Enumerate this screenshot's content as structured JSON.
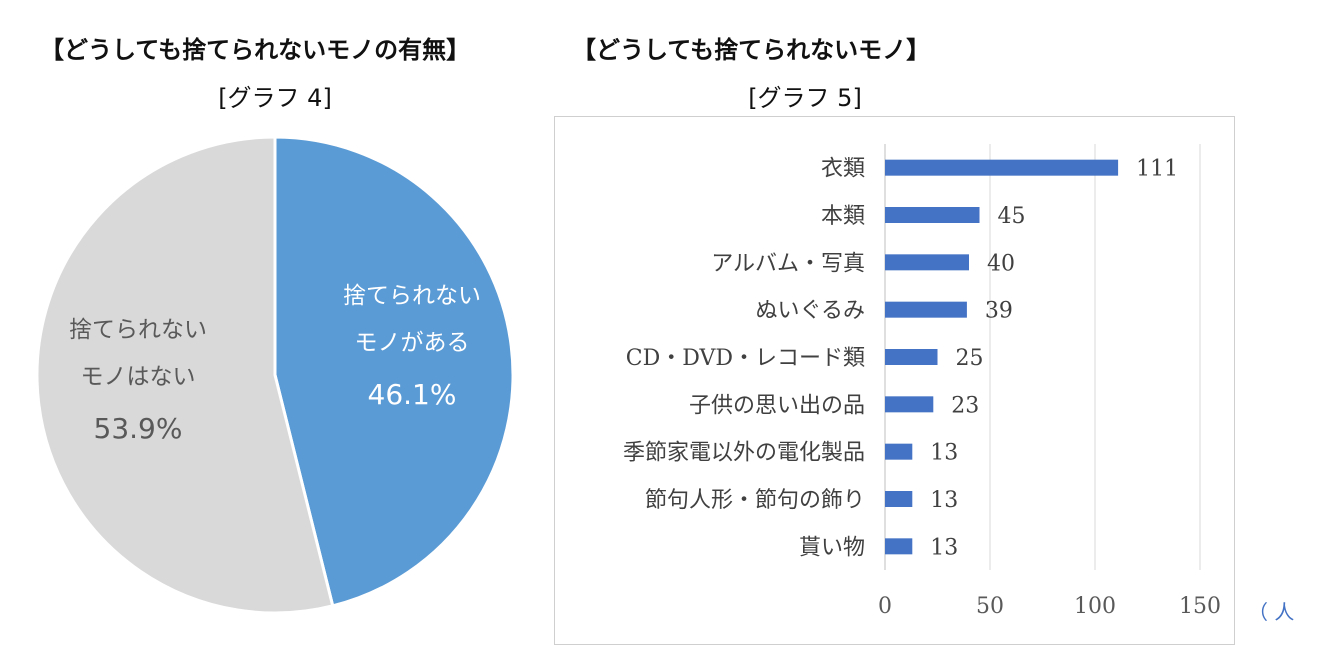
{
  "graph4": {
    "title": "【どうしても捨てられないモノの有無】",
    "subtitle": "[グラフ 4]",
    "chart_data": {
      "type": "pie",
      "slices": [
        {
          "label_line1": "捨てられない",
          "label_line2": "モノがある",
          "value": 46.1,
          "value_label": "46.1%",
          "color": "#5b9bd5",
          "text_color": "#ffffff"
        },
        {
          "label_line1": "捨てられない",
          "label_line2": "モノはない",
          "value": 53.9,
          "value_label": "53.9%",
          "color": "#d9d9d9",
          "text_color": "#595959"
        }
      ]
    }
  },
  "graph5": {
    "title": "【どうしても捨てられないモノ】",
    "subtitle": "[グラフ 5]",
    "unit_label": "（ 人",
    "chart_data": {
      "type": "bar",
      "orientation": "horizontal",
      "categories": [
        "衣類",
        "本類",
        "アルバム・写真",
        "ぬいぐるみ",
        "CD・DVD・レコード類",
        "子供の思い出の品",
        "季節家電以外の電化製品",
        "節句人形・節句の飾り",
        "貰い物"
      ],
      "values": [
        111,
        45,
        40,
        39,
        25,
        23,
        13,
        13,
        13
      ],
      "xlim": [
        0,
        150
      ],
      "xticks": [
        0,
        50,
        100,
        150
      ],
      "bar_color": "#4472c4",
      "grid": true
    }
  }
}
